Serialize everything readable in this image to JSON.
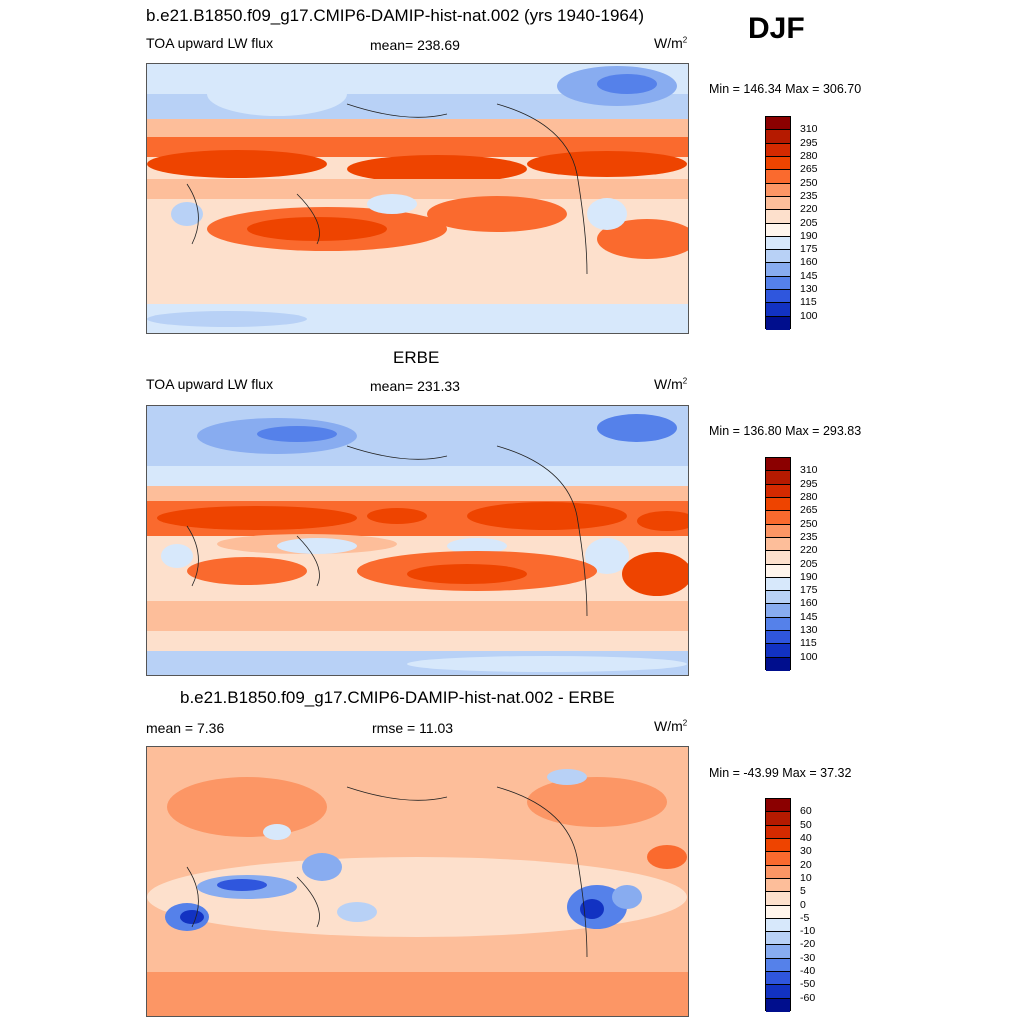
{
  "season": "DJF",
  "units_base": "W/m",
  "units_exp": "2",
  "panels": [
    {
      "title": "b.e21.B1850.f09_g17.CMIP6-DAMIP-hist-nat.002 (yrs 1940-1964)",
      "left_label": "TOA upward LW flux",
      "center_label": "mean= 238.69",
      "minmax": "Min = 146.34 Max = 306.70",
      "colorbar": {
        "labels": [
          "310",
          "295",
          "280",
          "265",
          "250",
          "235",
          "220",
          "205",
          "190",
          "175",
          "160",
          "145",
          "130",
          "115",
          "100"
        ],
        "colors": [
          "#8b0000",
          "#b51a00",
          "#d42a00",
          "#ee4400",
          "#fa6a2e",
          "#fc9665",
          "#fdbe9a",
          "#fde0cc",
          "#fff5ec",
          "#d7e8fb",
          "#b8d1f6",
          "#88acf0",
          "#5581ea",
          "#2f56dd",
          "#1232c2",
          "#000e8d"
        ]
      }
    },
    {
      "title": "ERBE",
      "left_label": "TOA upward LW flux",
      "center_label": "mean= 231.33",
      "minmax": "Min = 136.80 Max = 293.83",
      "colorbar": {
        "labels": [
          "310",
          "295",
          "280",
          "265",
          "250",
          "235",
          "220",
          "205",
          "190",
          "175",
          "160",
          "145",
          "130",
          "115",
          "100"
        ],
        "colors": [
          "#8b0000",
          "#b51a00",
          "#d42a00",
          "#ee4400",
          "#fa6a2e",
          "#fc9665",
          "#fdbe9a",
          "#fde0cc",
          "#fff5ec",
          "#d7e8fb",
          "#b8d1f6",
          "#88acf0",
          "#5581ea",
          "#2f56dd",
          "#1232c2",
          "#000e8d"
        ]
      }
    },
    {
      "title": "b.e21.B1850.f09_g17.CMIP6-DAMIP-hist-nat.002 - ERBE",
      "left_label": "mean =   7.36",
      "center_label": "rmse =  11.03",
      "minmax": "Min = -43.99 Max =  37.32",
      "colorbar": {
        "labels": [
          "60",
          "50",
          "40",
          "30",
          "20",
          "10",
          "5",
          "0",
          "-5",
          "-10",
          "-20",
          "-30",
          "-40",
          "-50",
          "-60"
        ],
        "colors": [
          "#8b0000",
          "#b51a00",
          "#d42a00",
          "#ee4400",
          "#fa6a2e",
          "#fc9665",
          "#fdbe9a",
          "#fde0cc",
          "#fff5ec",
          "#d7e8fb",
          "#b8d1f6",
          "#88acf0",
          "#5581ea",
          "#2f56dd",
          "#1232c2",
          "#000e8d"
        ]
      }
    }
  ]
}
